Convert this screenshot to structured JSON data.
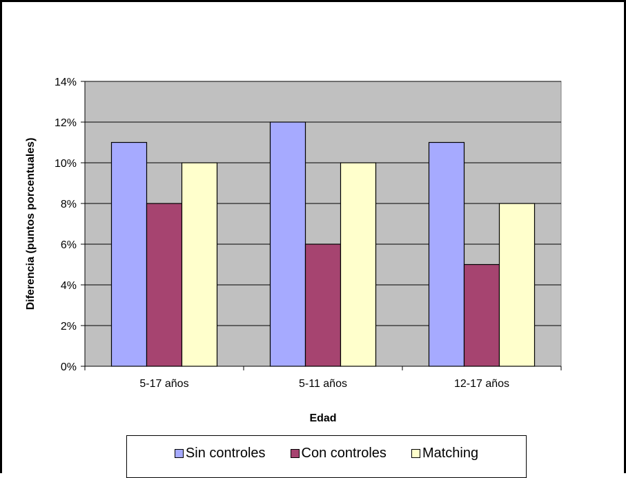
{
  "chart_data": {
    "type": "bar",
    "title": "",
    "xlabel": "Edad",
    "ylabel": "Diferencia (puntos porcentuales)",
    "categories": [
      "5-17 años",
      "5-11 años",
      "12-17 años"
    ],
    "series": [
      {
        "name": "Sin controles",
        "values": [
          11,
          12,
          11
        ],
        "color": "#a6aaff"
      },
      {
        "name": "Con controles",
        "values": [
          8,
          6,
          5
        ],
        "color": "#a64470"
      },
      {
        "name": "Matching",
        "values": [
          10,
          10,
          8
        ],
        "color": "#ffffcc"
      }
    ],
    "ylim": [
      0,
      14
    ],
    "yticks": [
      "0%",
      "2%",
      "4%",
      "6%",
      "8%",
      "10%",
      "12%",
      "14%"
    ],
    "grid": true,
    "plot_background": "#c0c0c0",
    "legend_position": "bottom"
  }
}
